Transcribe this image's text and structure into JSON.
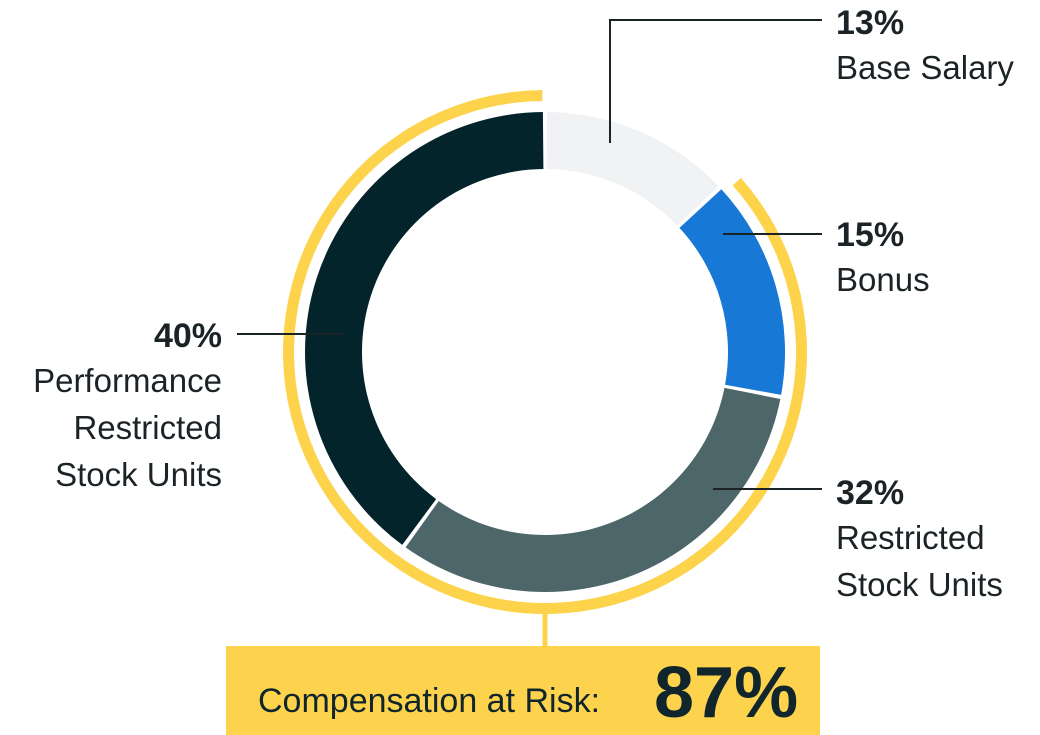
{
  "chart_data": {
    "type": "donut",
    "slices": [
      {
        "percent_label": "13%",
        "value": 13,
        "label": "Base Salary",
        "color": "#f1f2f4",
        "at_risk": false
      },
      {
        "percent_label": "15%",
        "value": 15,
        "label": "Bonus",
        "color": "#1878d6",
        "at_risk": true
      },
      {
        "percent_label": "32%",
        "value": 32,
        "label": "Restricted Stock Units",
        "color": "#4c6669",
        "at_risk": true
      },
      {
        "percent_label": "40%",
        "value": 40,
        "label": "Performance Restricted Stock Units",
        "color": "#03242b",
        "at_risk": true
      }
    ],
    "at_risk_color": "#fcd34a"
  },
  "summary": {
    "label": "Compensation at Risk:",
    "value": "87%"
  }
}
